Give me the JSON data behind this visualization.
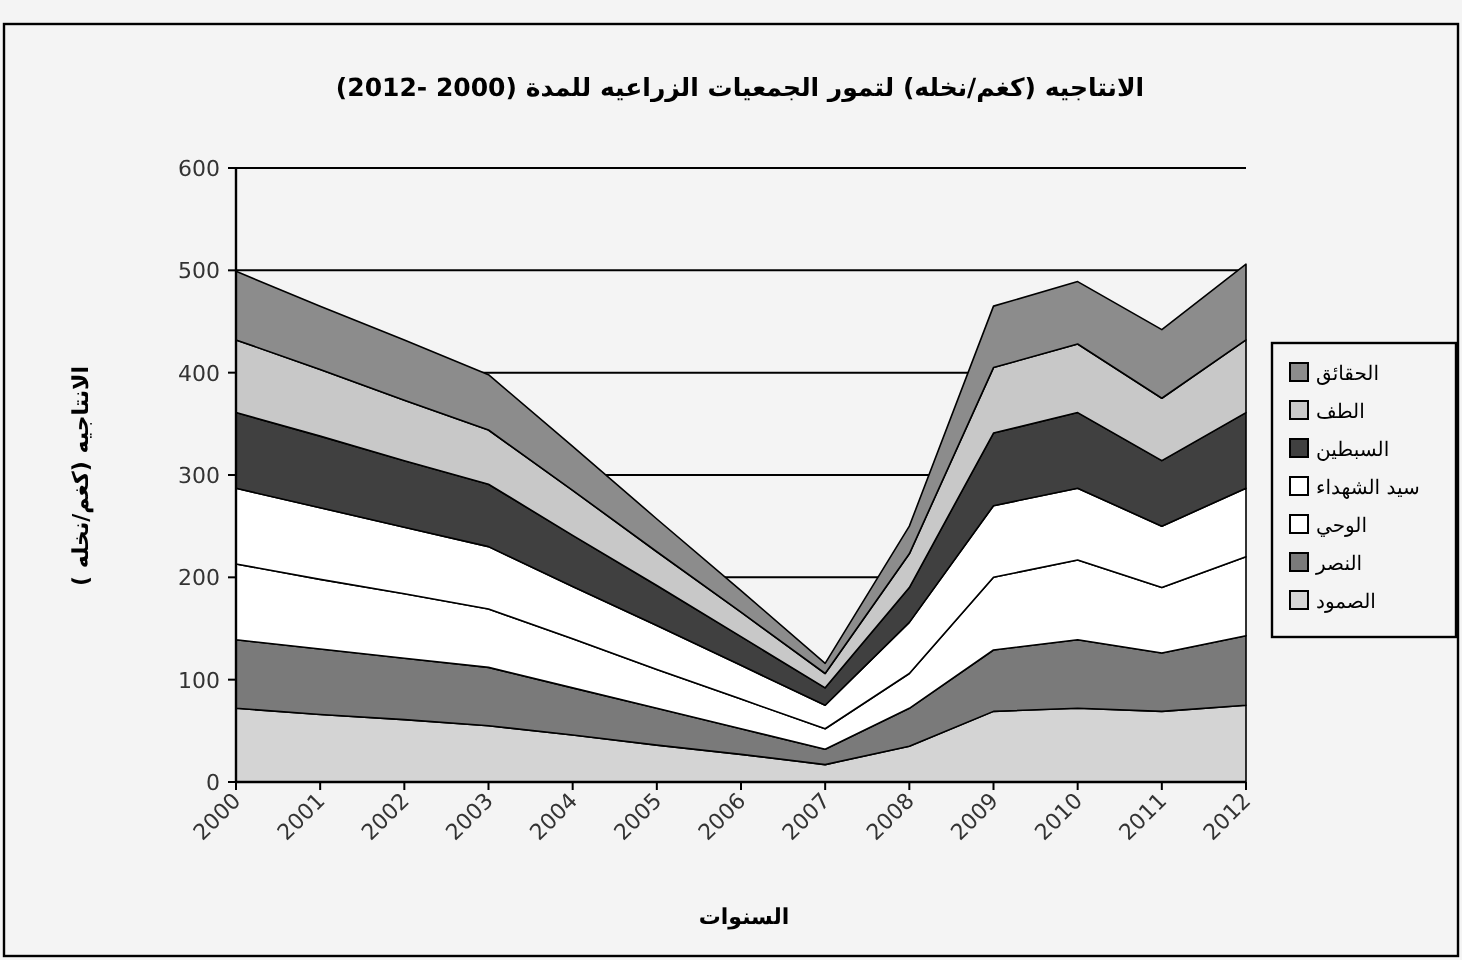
{
  "chart_data": {
    "type": "area",
    "stacked": true,
    "title": "الانتاجيه (كغم/نخله) لتمور الجمعيات الزراعيه للمدة (2000 -2012)",
    "xlabel": "السنوات",
    "ylabel": "الانتاجيه (كغم/نخله )",
    "categories": [
      "2000",
      "2001",
      "2002",
      "2003",
      "2004",
      "2005",
      "2006",
      "2007",
      "2008",
      "2009",
      "2010",
      "2011",
      "2012"
    ],
    "ylim": [
      0,
      600
    ],
    "yticks": [
      0,
      100,
      200,
      300,
      400,
      500,
      600
    ],
    "grid": "y",
    "legend": "right",
    "series": [
      {
        "name": "الصمود",
        "color": "#d4d4d4",
        "values": [
          72,
          66,
          61,
          55,
          46,
          36,
          27,
          17,
          35,
          69,
          72,
          69,
          75
        ]
      },
      {
        "name": "النصر",
        "color": "#7a7a7a",
        "values": [
          67,
          64,
          60,
          57,
          46,
          36,
          25,
          15,
          37,
          60,
          67,
          57,
          68
        ]
      },
      {
        "name": "الوحي",
        "color": "#ffffff",
        "values": [
          74,
          68,
          63,
          57,
          48,
          38,
          29,
          20,
          34,
          71,
          78,
          64,
          77
        ]
      },
      {
        "name": "سيد الشهداء",
        "color": "#ffffff",
        "values": [
          74,
          70,
          65,
          61,
          51,
          43,
          33,
          23,
          50,
          70,
          70,
          60,
          67
        ]
      },
      {
        "name": "السبطين",
        "color": "#404040",
        "values": [
          74,
          70,
          65,
          61,
          50,
          39,
          28,
          17,
          34,
          71,
          74,
          64,
          74
        ]
      },
      {
        "name": "الطف",
        "color": "#c8c8c8",
        "values": [
          71,
          65,
          59,
          53,
          44,
          33,
          24,
          14,
          33,
          64,
          67,
          61,
          71
        ]
      },
      {
        "name": "الحقائق",
        "color": "#8c8c8c",
        "values": [
          67,
          62,
          59,
          54,
          43,
          32,
          21,
          10,
          27,
          60,
          61,
          67,
          74
        ]
      }
    ]
  }
}
